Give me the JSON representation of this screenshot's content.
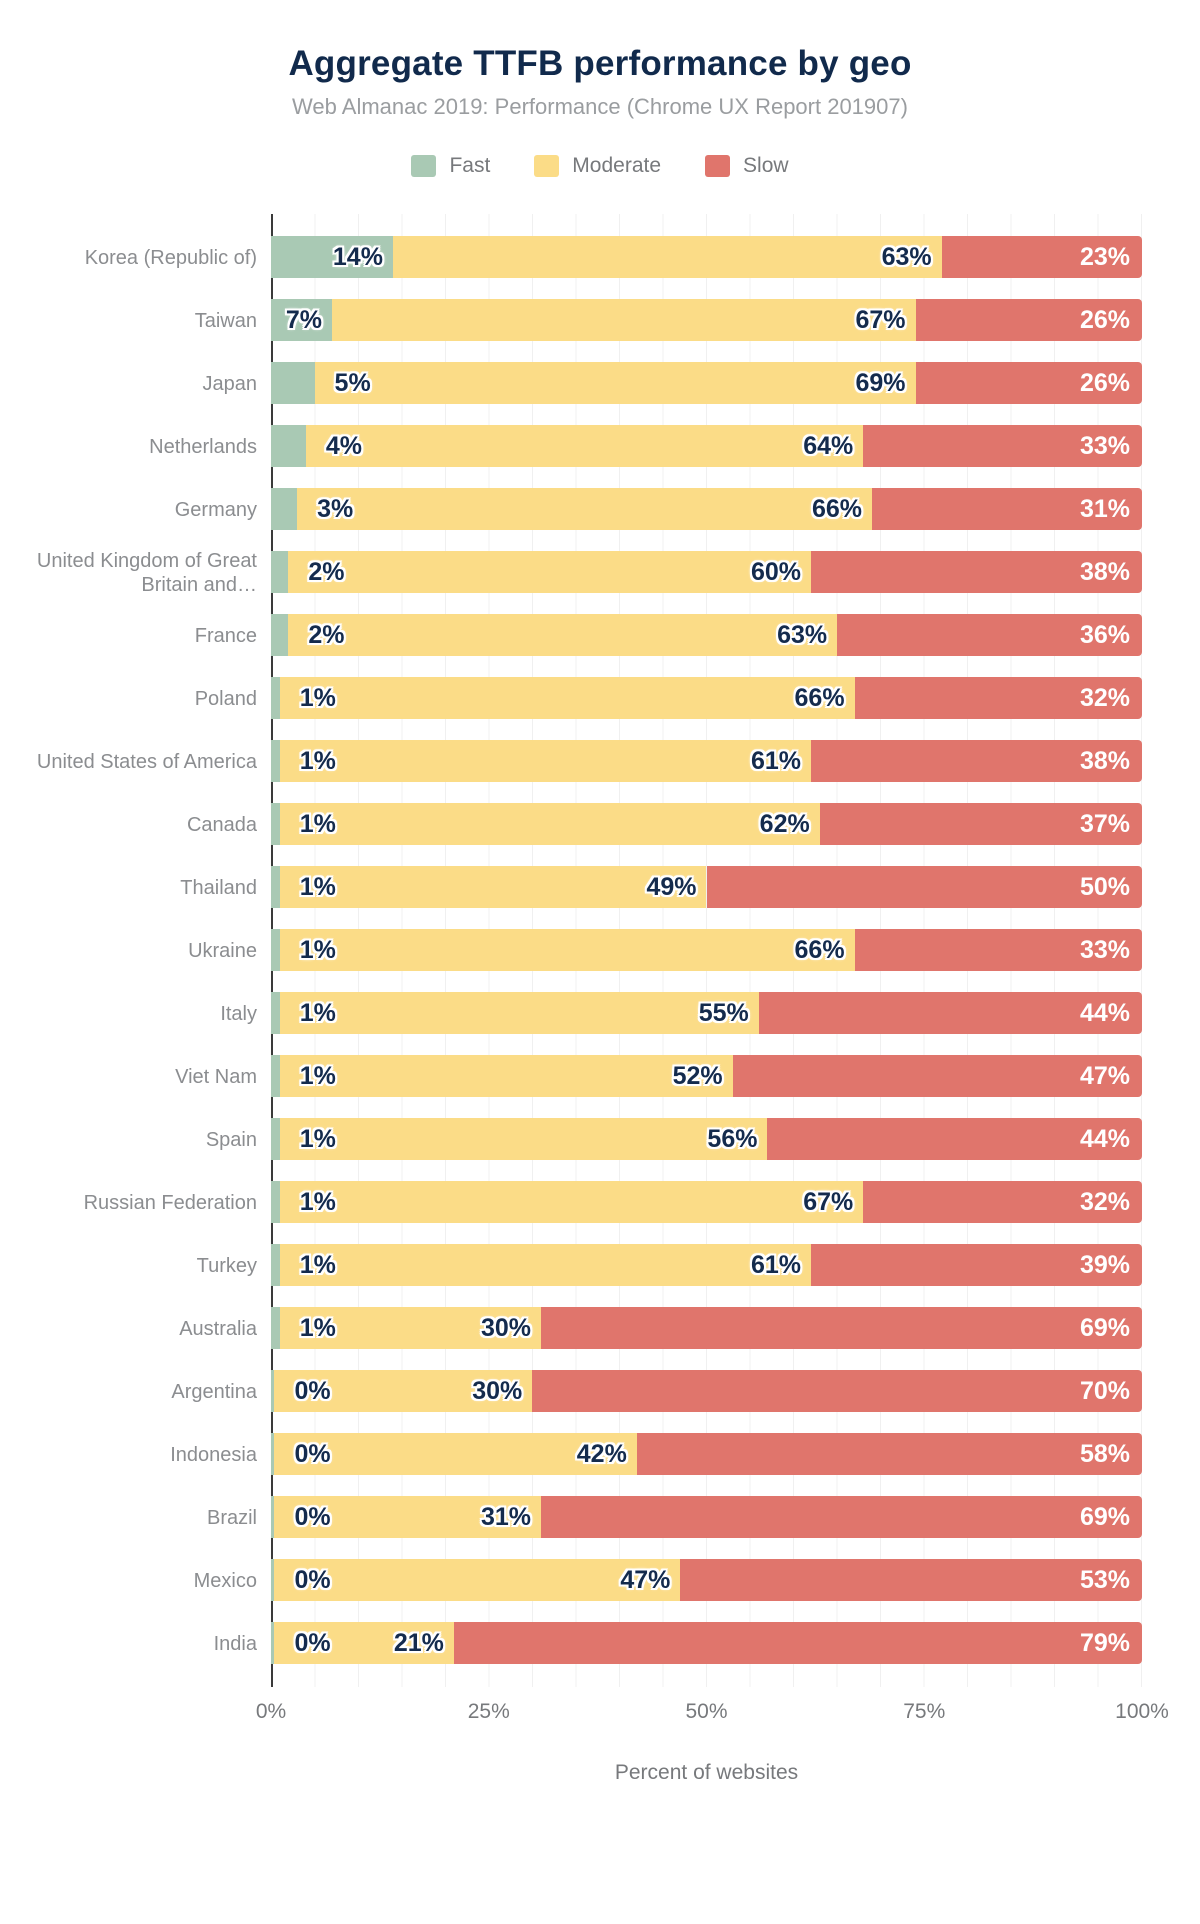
{
  "header": {
    "title": "Aggregate TTFB performance by geo",
    "subtitle": "Web Almanac 2019: Performance (Chrome UX Report 201907)"
  },
  "legend": [
    {
      "label": "Fast",
      "color": "#a9c9b4"
    },
    {
      "label": "Moderate",
      "color": "#fbdc87"
    },
    {
      "label": "Slow",
      "color": "#e0756c"
    }
  ],
  "colors": {
    "fast": "#a9c9b4",
    "moderate": "#fbdc87",
    "slow": "#e0756c",
    "value_label": "#142b4d",
    "title": "#112a4c",
    "axis_line": "#3a3a3a",
    "gridline": "#f0f0f0"
  },
  "chart_data": {
    "type": "bar",
    "orientation": "horizontal",
    "stacked": true,
    "title": "Aggregate TTFB performance by geo",
    "subtitle": "Web Almanac 2019: Performance (Chrome UX Report 201907)",
    "xlabel": "Percent of websites",
    "ylabel": "",
    "xlim": [
      0,
      100
    ],
    "x_ticks": [
      {
        "label": "0%",
        "value": 0
      },
      {
        "label": "25%",
        "value": 25
      },
      {
        "label": "50%",
        "value": 50
      },
      {
        "label": "75%",
        "value": 75
      },
      {
        "label": "100%",
        "value": 100
      }
    ],
    "grid": "on",
    "legend_position": "top",
    "categories": [
      "Korea (Republic of)",
      "Taiwan",
      "Japan",
      "Netherlands",
      "Germany",
      "United Kingdom of Great Britain and…",
      "France",
      "Poland",
      "United States of America",
      "Canada",
      "Thailand",
      "Ukraine",
      "Italy",
      "Viet Nam",
      "Spain",
      "Russian Federation",
      "Turkey",
      "Australia",
      "Argentina",
      "Indonesia",
      "Brazil",
      "Mexico",
      "India"
    ],
    "series": [
      {
        "name": "Fast",
        "color": "#a9c9b4",
        "values": [
          14,
          7,
          5,
          4,
          3,
          2,
          2,
          1,
          1,
          1,
          1,
          1,
          1,
          1,
          1,
          1,
          1,
          1,
          0,
          0,
          0,
          0,
          0
        ]
      },
      {
        "name": "Moderate",
        "color": "#fbdc87",
        "values": [
          63,
          67,
          69,
          64,
          66,
          60,
          63,
          66,
          61,
          62,
          49,
          66,
          55,
          52,
          56,
          67,
          61,
          30,
          30,
          42,
          31,
          47,
          21
        ]
      },
      {
        "name": "Slow",
        "color": "#e0756c",
        "values": [
          23,
          26,
          26,
          33,
          31,
          38,
          36,
          32,
          38,
          37,
          50,
          33,
          44,
          47,
          44,
          32,
          39,
          69,
          70,
          58,
          69,
          53,
          79
        ]
      }
    ],
    "value_label_suffix": "%"
  }
}
